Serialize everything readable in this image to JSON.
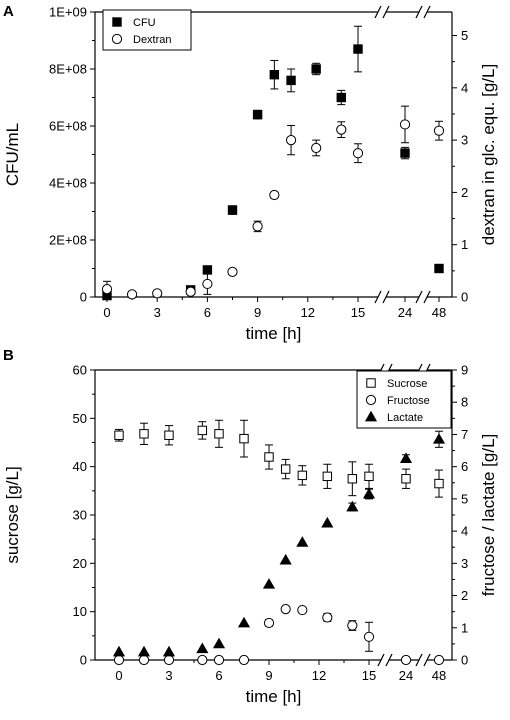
{
  "chart_data": [
    {
      "panel": "A",
      "type": "scatter",
      "xlabel": "time [h]",
      "ylabel_left": "CFU/mL",
      "ylabel_right": "dextran in glc. equ. [g/L]",
      "x_ticks": [
        "0",
        "3",
        "6",
        "9",
        "12",
        "15",
        "24",
        "48"
      ],
      "x_axis_breaks": [
        "between 15 and 24",
        "between 24 and 48"
      ],
      "left_ticks": [
        "0",
        "2E+08",
        "4E+08",
        "6E+08",
        "8E+08",
        "1E+09"
      ],
      "right_ticks": [
        "0",
        "1",
        "2",
        "3",
        "4",
        "5"
      ],
      "left_ylim": [
        0,
        1000000000
      ],
      "right_ylim": [
        0,
        5.45
      ],
      "legend_position": "top-left",
      "series": [
        {
          "name": "CFU",
          "axis": "left",
          "marker": "filled-square",
          "points": [
            {
              "x": 0,
              "y": 5000000,
              "err": 0
            },
            {
              "x": 5,
              "y": 25000000,
              "err": 0
            },
            {
              "x": 6,
              "y": 95000000,
              "err": 0
            },
            {
              "x": 7.5,
              "y": 305000000,
              "err": 15000000
            },
            {
              "x": 9,
              "y": 640000000,
              "err": 15000000
            },
            {
              "x": 10,
              "y": 780000000,
              "err": 50000000
            },
            {
              "x": 11,
              "y": 760000000,
              "err": 40000000
            },
            {
              "x": 12.5,
              "y": 800000000,
              "err": 20000000
            },
            {
              "x": 14,
              "y": 700000000,
              "err": 25000000
            },
            {
              "x": 15,
              "y": 870000000,
              "err": 80000000
            },
            {
              "x": 24,
              "y": 505000000,
              "err": 20000000
            },
            {
              "x": 48,
              "y": 100000000,
              "err": 0
            }
          ]
        },
        {
          "name": "Dextran",
          "axis": "right",
          "marker": "open-circle",
          "points": [
            {
              "x": 0,
              "y": 0.15,
              "err": 0.15
            },
            {
              "x": 1.5,
              "y": 0.05,
              "err": 0.05
            },
            {
              "x": 3,
              "y": 0.07,
              "err": 0.05
            },
            {
              "x": 5,
              "y": 0.1,
              "err": 0.05
            },
            {
              "x": 6,
              "y": 0.25,
              "err": 0.2
            },
            {
              "x": 7.5,
              "y": 0.48,
              "err": 0.05
            },
            {
              "x": 9,
              "y": 1.35,
              "err": 0.1
            },
            {
              "x": 10,
              "y": 1.95,
              "err": 0.05
            },
            {
              "x": 11,
              "y": 3.0,
              "err": 0.28
            },
            {
              "x": 12.5,
              "y": 2.85,
              "err": 0.15
            },
            {
              "x": 14,
              "y": 3.2,
              "err": 0.15
            },
            {
              "x": 15,
              "y": 2.75,
              "err": 0.18
            },
            {
              "x": 24,
              "y": 3.3,
              "err": 0.35
            },
            {
              "x": 48,
              "y": 3.18,
              "err": 0.18
            }
          ]
        }
      ]
    },
    {
      "panel": "B",
      "type": "scatter",
      "xlabel": "time [h]",
      "ylabel_left": "sucrose [g/L]",
      "ylabel_right": "fructose / lactate [g/L]",
      "x_ticks": [
        "0",
        "3",
        "6",
        "9",
        "12",
        "15",
        "24",
        "48"
      ],
      "x_axis_breaks": [
        "between 15 and 24",
        "between 24 and 48"
      ],
      "left_ticks": [
        "0",
        "10",
        "20",
        "30",
        "40",
        "50",
        "60"
      ],
      "right_ticks": [
        "0",
        "1",
        "2",
        "3",
        "4",
        "5",
        "6",
        "7",
        "8",
        "9"
      ],
      "left_ylim": [
        0,
        60
      ],
      "right_ylim": [
        0,
        9
      ],
      "legend_position": "top-right",
      "series": [
        {
          "name": "Sucrose",
          "axis": "left",
          "marker": "open-square",
          "points": [
            {
              "x": 0,
              "y": 46.5,
              "err": 1.2
            },
            {
              "x": 1.5,
              "y": 46.8,
              "err": 2.2
            },
            {
              "x": 3,
              "y": 46.5,
              "err": 2.0
            },
            {
              "x": 5,
              "y": 47.5,
              "err": 1.8
            },
            {
              "x": 6,
              "y": 46.8,
              "err": 2.8
            },
            {
              "x": 7.5,
              "y": 45.8,
              "err": 3.8
            },
            {
              "x": 9,
              "y": 42.0,
              "err": 2.5
            },
            {
              "x": 10,
              "y": 39.5,
              "err": 2.0
            },
            {
              "x": 11,
              "y": 38.2,
              "err": 2.0
            },
            {
              "x": 12.5,
              "y": 38.0,
              "err": 2.5
            },
            {
              "x": 14,
              "y": 37.5,
              "err": 3.5
            },
            {
              "x": 15,
              "y": 38.0,
              "err": 2.5
            },
            {
              "x": 24,
              "y": 37.5,
              "err": 2.0
            },
            {
              "x": 48,
              "y": 36.5,
              "err": 2.8
            }
          ]
        },
        {
          "name": "Fructose",
          "axis": "right",
          "marker": "open-circle",
          "points": [
            {
              "x": 0,
              "y": 0,
              "err": 0
            },
            {
              "x": 1.5,
              "y": 0,
              "err": 0
            },
            {
              "x": 3,
              "y": 0,
              "err": 0
            },
            {
              "x": 5,
              "y": 0,
              "err": 0
            },
            {
              "x": 6,
              "y": 0,
              "err": 0
            },
            {
              "x": 7.5,
              "y": 0,
              "err": 0
            },
            {
              "x": 9,
              "y": 1.15,
              "err": 0.1
            },
            {
              "x": 10,
              "y": 1.58,
              "err": 0.08
            },
            {
              "x": 11,
              "y": 1.55,
              "err": 0.08
            },
            {
              "x": 12.5,
              "y": 1.32,
              "err": 0.12
            },
            {
              "x": 14,
              "y": 1.07,
              "err": 0.15
            },
            {
              "x": 15,
              "y": 0.72,
              "err": 0.45
            },
            {
              "x": 24,
              "y": 0,
              "err": 0
            },
            {
              "x": 48,
              "y": 0,
              "err": 0
            }
          ]
        },
        {
          "name": "Lactate",
          "axis": "right",
          "marker": "filled-triangle",
          "points": [
            {
              "x": 0,
              "y": 0.25,
              "err": 0
            },
            {
              "x": 1.5,
              "y": 0.25,
              "err": 0
            },
            {
              "x": 3,
              "y": 0.25,
              "err": 0
            },
            {
              "x": 5,
              "y": 0.35,
              "err": 0
            },
            {
              "x": 6,
              "y": 0.5,
              "err": 0
            },
            {
              "x": 7.5,
              "y": 1.15,
              "err": 0
            },
            {
              "x": 9,
              "y": 2.35,
              "err": 0
            },
            {
              "x": 10,
              "y": 3.1,
              "err": 0
            },
            {
              "x": 11,
              "y": 3.65,
              "err": 0
            },
            {
              "x": 12.5,
              "y": 4.25,
              "err": 0
            },
            {
              "x": 14,
              "y": 4.75,
              "err": 0.12
            },
            {
              "x": 15,
              "y": 5.15,
              "err": 0.15
            },
            {
              "x": 24,
              "y": 6.25,
              "err": 0.12
            },
            {
              "x": 48,
              "y": 6.85,
              "err": 0.25
            }
          ]
        }
      ]
    }
  ]
}
